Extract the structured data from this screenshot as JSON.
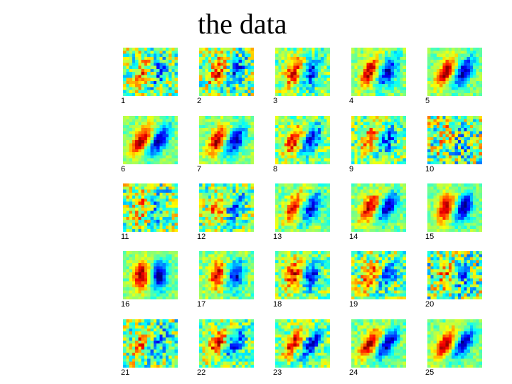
{
  "title": "the data",
  "panels": [
    {
      "label": "1",
      "strength": 0.45,
      "noise": 0.85,
      "tilt": 0.2
    },
    {
      "label": "2",
      "strength": 0.65,
      "noise": 0.8,
      "tilt": 0.25
    },
    {
      "label": "3",
      "strength": 0.75,
      "noise": 0.55,
      "tilt": 0.25
    },
    {
      "label": "4",
      "strength": 0.9,
      "noise": 0.4,
      "tilt": 0.35
    },
    {
      "label": "5",
      "strength": 0.95,
      "noise": 0.3,
      "tilt": 0.4
    },
    {
      "label": "6",
      "strength": 0.95,
      "noise": 0.3,
      "tilt": 0.45
    },
    {
      "label": "7",
      "strength": 0.9,
      "noise": 0.35,
      "tilt": 0.35
    },
    {
      "label": "8",
      "strength": 0.8,
      "noise": 0.5,
      "tilt": 0.35
    },
    {
      "label": "9",
      "strength": 0.6,
      "noise": 0.65,
      "tilt": 0.3
    },
    {
      "label": "10",
      "strength": 0.25,
      "noise": 1.0,
      "tilt": 0.2
    },
    {
      "label": "11",
      "strength": 0.4,
      "noise": 0.85,
      "tilt": 0.2
    },
    {
      "label": "12",
      "strength": 0.55,
      "noise": 0.75,
      "tilt": 0.25
    },
    {
      "label": "13",
      "strength": 0.85,
      "noise": 0.4,
      "tilt": 0.35
    },
    {
      "label": "14",
      "strength": 0.9,
      "noise": 0.35,
      "tilt": 0.4
    },
    {
      "label": "15",
      "strength": 0.95,
      "noise": 0.3,
      "tilt": 0.25
    },
    {
      "label": "16",
      "strength": 1.0,
      "noise": 0.3,
      "tilt": 0.05
    },
    {
      "label": "17",
      "strength": 0.85,
      "noise": 0.4,
      "tilt": 0.1
    },
    {
      "label": "18",
      "strength": 0.8,
      "noise": 0.55,
      "tilt": 0.15
    },
    {
      "label": "19",
      "strength": 0.6,
      "noise": 0.75,
      "tilt": 0.25
    },
    {
      "label": "20",
      "strength": 0.35,
      "noise": 0.95,
      "tilt": 0.2
    },
    {
      "label": "21",
      "strength": 0.4,
      "noise": 0.85,
      "tilt": 0.2
    },
    {
      "label": "22",
      "strength": 0.7,
      "noise": 0.6,
      "tilt": 0.45
    },
    {
      "label": "23",
      "strength": 0.75,
      "noise": 0.55,
      "tilt": 0.55
    },
    {
      "label": "24",
      "strength": 0.95,
      "noise": 0.35,
      "tilt": 0.5
    },
    {
      "label": "25",
      "strength": 0.95,
      "noise": 0.3,
      "tilt": 0.45
    }
  ]
}
